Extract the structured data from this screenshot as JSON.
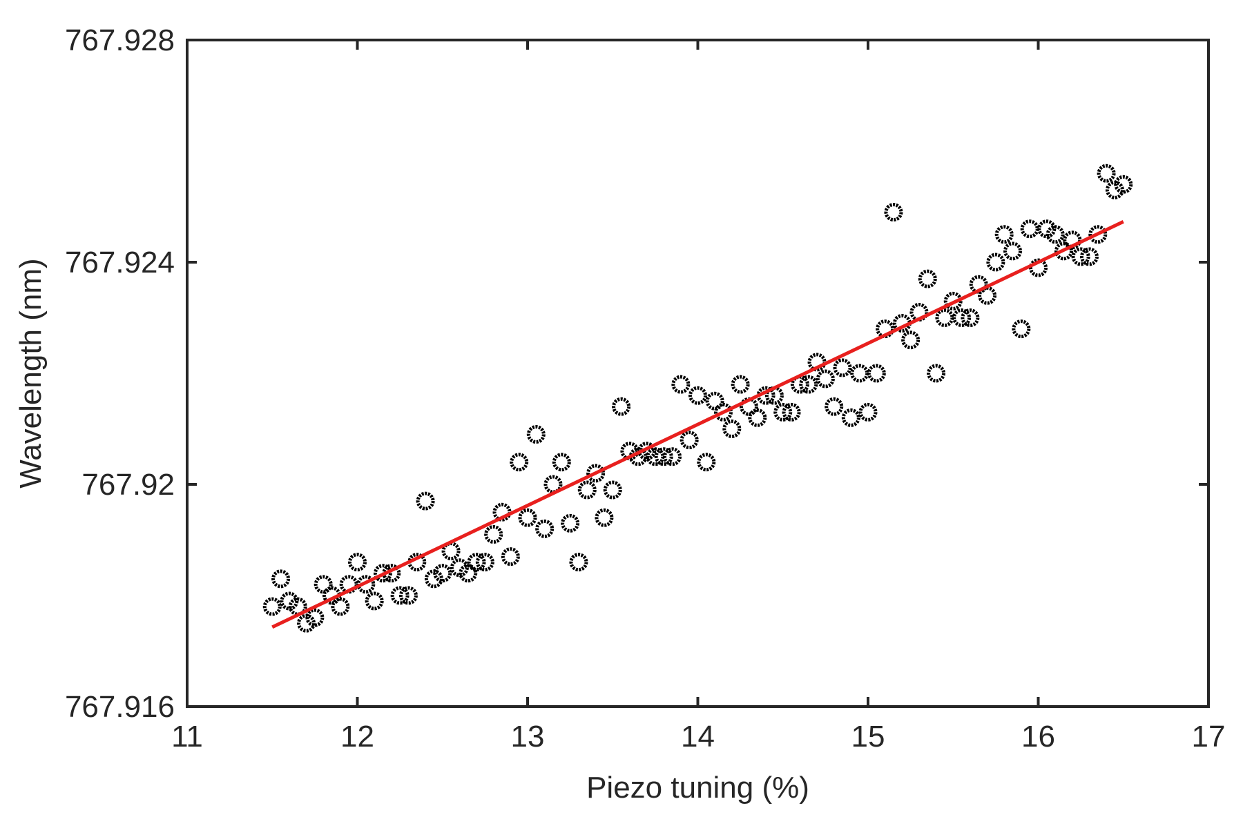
{
  "chart_data": {
    "type": "scatter",
    "xlabel": "Piezo tuning (%)",
    "ylabel": "Wavelength (nm)",
    "xlim": [
      11,
      17
    ],
    "ylim": [
      767.916,
      767.928
    ],
    "xticks": [
      11,
      12,
      13,
      14,
      15,
      16,
      17
    ],
    "yticks": [
      767.916,
      767.92,
      767.924,
      767.928
    ],
    "xtick_labels": [
      "11",
      "12",
      "13",
      "14",
      "15",
      "16",
      "17"
    ],
    "ytick_labels": [
      "767.916",
      "767.92",
      "767.924",
      "767.928"
    ],
    "grid": false,
    "colors": {
      "points": "#000000",
      "fit": "#e8201e",
      "axes": "#262626"
    },
    "series": [
      {
        "kind": "points",
        "x": [
          11.5,
          11.55,
          11.6,
          11.65,
          11.7,
          11.75,
          11.8,
          11.85,
          11.9,
          11.95,
          12.0,
          12.05,
          12.1,
          12.15,
          12.2,
          12.25,
          12.3,
          12.35,
          12.4,
          12.45,
          12.5,
          12.55,
          12.6,
          12.65,
          12.7,
          12.75,
          12.8,
          12.85,
          12.9,
          12.95,
          13.0,
          13.05,
          13.1,
          13.15,
          13.2,
          13.25,
          13.3,
          13.35,
          13.4,
          13.45,
          13.5,
          13.55,
          13.6,
          13.65,
          13.7,
          13.75,
          13.8,
          13.85,
          13.9,
          13.95,
          14.0,
          14.05,
          14.1,
          14.15,
          14.2,
          14.25,
          14.3,
          14.35,
          14.4,
          14.45,
          14.5,
          14.55,
          14.6,
          14.65,
          14.7,
          14.75,
          14.8,
          14.85,
          14.9,
          14.95,
          15.0,
          15.05,
          15.1,
          15.15,
          15.2,
          15.25,
          15.3,
          15.35,
          15.4,
          15.45,
          15.5,
          15.55,
          15.6,
          15.65,
          15.7,
          15.75,
          15.8,
          15.85,
          15.9,
          15.95,
          16.0,
          16.05,
          16.1,
          16.15,
          16.2,
          16.25,
          16.3,
          16.35,
          16.4,
          16.45,
          16.5
        ],
        "y": [
          767.9178,
          767.9183,
          767.9179,
          767.9178,
          767.9175,
          767.9176,
          767.9182,
          767.918,
          767.9178,
          767.9182,
          767.9186,
          767.9182,
          767.9179,
          767.9184,
          767.9184,
          767.918,
          767.918,
          767.9186,
          767.9197,
          767.9183,
          767.9184,
          767.9188,
          767.9185,
          767.9184,
          767.9186,
          767.9186,
          767.9191,
          767.9195,
          767.9187,
          767.9204,
          767.9194,
          767.9209,
          767.9192,
          767.92,
          767.9204,
          767.9193,
          767.9186,
          767.9199,
          767.9202,
          767.9194,
          767.9199,
          767.9214,
          767.9206,
          767.9205,
          767.9206,
          767.9205,
          767.9205,
          767.9205,
          767.9218,
          767.9208,
          767.9216,
          767.9204,
          767.9215,
          767.9213,
          767.921,
          767.9218,
          767.9214,
          767.9212,
          767.9216,
          767.9216,
          767.9213,
          767.9213,
          767.9218,
          767.9218,
          767.9222,
          767.9219,
          767.9214,
          767.9221,
          767.9212,
          767.922,
          767.9213,
          767.922,
          767.9228,
          767.9249,
          767.9229,
          767.9226,
          767.9231,
          767.9237,
          767.922,
          767.923,
          767.9233,
          767.923,
          767.923,
          767.9236,
          767.9234,
          767.924,
          767.9245,
          767.9242,
          767.9228,
          767.9246,
          767.9239,
          767.9246,
          767.9245,
          767.9242,
          767.9244,
          767.9241,
          767.9241,
          767.9245,
          767.9256,
          767.9253,
          767.9254
        ]
      },
      {
        "kind": "fit-line",
        "x": [
          11.5,
          16.5
        ],
        "y": [
          767.91743,
          767.92473
        ]
      }
    ]
  }
}
